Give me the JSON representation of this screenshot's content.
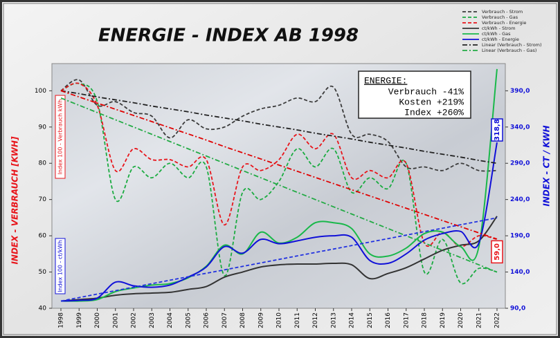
{
  "chart_data": {
    "type": "line",
    "title": "ENERGIE - INDEX AB 1998",
    "y_label": "INDEX - VERBRAUCH  [KWH]",
    "y2_label": "INDEX - CT / KWH",
    "left_note": "Index 100 - Verbrauch kWh",
    "left_note2": "Index 100 - ct/kWh",
    "box_title": "ENERGIE:",
    "box_lines": [
      "Verbrauch  -41%",
      "Kosten +219%",
      "Index +260%"
    ],
    "categories": [
      "1998",
      "1999",
      "2000",
      "2001",
      "2002",
      "2003",
      "2004",
      "2005",
      "2006",
      "2007",
      "2008",
      "2009",
      "2010",
      "2011",
      "2012",
      "2013",
      "2014",
      "2015",
      "2016",
      "2017",
      "2018",
      "2019",
      "2020",
      "2021",
      "2022"
    ],
    "ylim": [
      40,
      107.5
    ],
    "yticks": [
      40,
      50,
      60,
      70,
      80,
      90,
      100
    ],
    "y2lim": [
      90,
      427.5
    ],
    "y2ticks": [
      {
        "value": 90,
        "label": "90,0"
      },
      {
        "value": 140,
        "label": "140,0"
      },
      {
        "value": 190,
        "label": "190,0"
      },
      {
        "value": 240,
        "label": "240,0"
      },
      {
        "value": 290,
        "label": "290,0"
      },
      {
        "value": 340,
        "label": "340,0"
      },
      {
        "value": 390,
        "label": "390,0"
      }
    ],
    "series": [
      {
        "name": "Verbrauch - Strom",
        "color": "#3a3a3a",
        "dash": "dashed",
        "values": [
          100,
          103,
          96,
          97,
          94,
          93,
          87,
          92,
          89.5,
          90,
          93,
          95,
          96,
          98,
          97,
          101,
          88,
          88,
          86,
          79,
          79,
          78,
          80,
          78,
          78
        ]
      },
      {
        "name": "Verbrauch - Gas",
        "color": "#1aab40",
        "dash": "dashed",
        "values": [
          100,
          102,
          97,
          70,
          79,
          76,
          80,
          76,
          79,
          49,
          72,
          70,
          75,
          84,
          79,
          84,
          72,
          76,
          73,
          80,
          50,
          59,
          47,
          51,
          50
        ]
      },
      {
        "name": "Verbrauch - Energie",
        "color": "#e8141a",
        "dash": "dashed",
        "values": [
          100,
          102,
          96,
          78,
          84,
          81,
          81,
          79,
          81,
          63,
          79,
          78,
          81,
          88,
          84,
          88,
          76,
          78,
          76,
          80,
          58,
          61,
          57,
          60,
          59
        ],
        "value_labels": [
          null,
          null,
          null,
          null,
          null,
          null,
          null,
          null,
          null,
          null,
          null,
          null,
          null,
          null,
          null,
          null,
          null,
          null,
          null,
          null,
          null,
          null,
          null,
          null,
          "59,0"
        ]
      },
      {
        "name": "ct/kWh - Strom",
        "color": "#333333",
        "dash": "solid",
        "axis": "y2",
        "values": [
          100,
          102,
          104,
          108,
          110,
          111,
          112,
          116,
          120,
          133,
          140,
          147,
          150,
          151,
          151,
          152,
          150,
          131,
          138,
          146,
          158,
          170,
          177,
          183,
          217
        ]
      },
      {
        "name": "ct/kWh - Gas",
        "color": "#19b84a",
        "dash": "solid",
        "axis": "y2",
        "values": [
          100,
          100,
          102,
          113,
          118,
          122,
          124,
          132,
          148,
          177,
          165,
          195,
          180,
          188,
          208,
          208,
          200,
          165,
          162,
          173,
          193,
          195,
          175,
          175,
          420
        ]
      },
      {
        "name": "ct/kWh - Energie",
        "color": "#1010d8",
        "dash": "solid",
        "axis": "y2",
        "values": [
          100,
          101,
          104,
          126,
          121,
          119,
          122,
          133,
          147,
          175,
          166,
          185,
          179,
          183,
          188,
          190,
          188,
          156,
          152,
          165,
          184,
          193,
          196,
          180,
          318.8
        ],
        "value_labels": [
          null,
          null,
          null,
          null,
          null,
          null,
          null,
          null,
          null,
          null,
          null,
          null,
          null,
          null,
          null,
          null,
          null,
          null,
          null,
          null,
          null,
          null,
          null,
          null,
          "318,8"
        ]
      },
      {
        "name": "Linear (Verbrauch - Strom)",
        "color": "#222222",
        "dash": "dashdot",
        "values": [
          100,
          99.2,
          98.3,
          97.5,
          96.7,
          95.8,
          95,
          94.2,
          93.3,
          92.5,
          91.7,
          90.8,
          90,
          89.2,
          88.3,
          87.5,
          86.7,
          85.8,
          85,
          84.2,
          83.3,
          82.5,
          81.7,
          80.8,
          80
        ]
      },
      {
        "name": "Linear (Verbrauch - Gas)",
        "color": "#22aa44",
        "dash": "dashdot",
        "values": [
          98,
          96,
          94,
          92,
          90,
          88,
          86,
          84,
          82,
          80,
          78,
          76,
          74,
          72,
          70,
          68,
          66,
          64,
          62,
          60,
          58,
          56,
          54,
          52,
          50
        ]
      },
      {
        "color": "#e00000",
        "dash": "dashdot",
        "values": [
          100,
          98.3,
          96.6,
          94.9,
          93.2,
          91.5,
          89.8,
          88.1,
          86.4,
          84.6,
          82.9,
          81.2,
          79.5,
          77.8,
          76.1,
          74.4,
          72.7,
          71,
          69.3,
          67.6,
          65.9,
          64.2,
          62.5,
          60.8,
          59.1
        ]
      },
      {
        "color": "#2030e0",
        "dash": "dashed",
        "axis": "y2",
        "values": [
          100,
          104.8,
          109.6,
          114.3,
          119.1,
          123.9,
          128.7,
          133.5,
          138.3,
          143,
          147.8,
          152.6,
          157.4,
          162.2,
          167,
          171.7,
          176.5,
          181.3,
          186.1,
          190.9,
          195.7,
          200.4,
          205.2,
          210,
          214.8
        ]
      }
    ]
  }
}
